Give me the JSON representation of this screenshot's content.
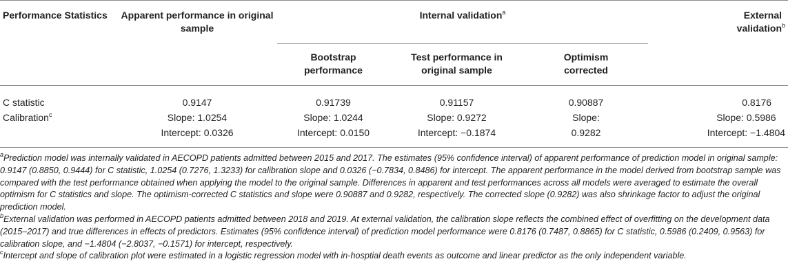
{
  "header": {
    "col0": "Performance Statistics",
    "col1": "Apparent performance in original sample",
    "internal": {
      "label": "Internal validation",
      "sup": "a"
    },
    "external": {
      "label": "External validation",
      "sup": "b"
    },
    "sub": [
      "Bootstrap performance",
      "Test performance in original sample",
      "Optimism corrected"
    ]
  },
  "rows": [
    {
      "label": "C statistic",
      "cells": [
        "0.9147",
        "0.91739",
        "0.91157",
        "0.90887",
        "0.8176"
      ]
    },
    {
      "label": "Calibration",
      "sup": "c",
      "cells": [
        [
          "Slope: 1.0254",
          "Intercept: 0.0326"
        ],
        [
          "Slope: 1.0244",
          "Intercept: 0.0150"
        ],
        [
          "Slope: 0.9272",
          "Intercept: −0.1874"
        ],
        [
          "Slope:",
          "0.9282"
        ],
        [
          "Slope: 0.5986",
          "Intercept: −1.4804"
        ]
      ]
    }
  ],
  "footnotes": [
    {
      "mark": "a",
      "text": "Prediction model was internally validated in AECOPD patients admitted between 2015 and 2017. The estimates (95% confidence interval) of apparent performance of prediction model in original sample: 0.9147 (0.8850, 0.9444) for C statistic, 1.0254 (0.7276, 1.3233) for calibration slope and 0.0326 (−0.7834, 0.8486) for intercept. The apparent performance in the model derived from bootstrap sample was compared with the test performance obtained when applying the model to the original sample. Differences in apparent and test performances across all models were averaged to estimate the overall optimism for C statistics and slope. The optimism-corrected C statistics and slope were 0.90887 and 0.9282, respectively. The corrected slope (0.9282) was also shrinkage factor to adjust the original prediction model."
    },
    {
      "mark": "b",
      "text": "External validation was performed in AECOPD patients admitted between 2018 and 2019. At external validation, the calibration slope reflects the combined effect of overfitting on the development data (2015–2017) and true differences in effects of predictors. Estimates (95% confidence interval) of prediction model performance were 0.8176 (0.7487, 0.8865) for C statistic, 0.5986 (0.2409, 0.9563) for calibration slope, and −1.4804 (−2.8037, −0.1571) for intercept, respectively."
    },
    {
      "mark": "c",
      "text": "Intercept and slope of calibration plot were estimated in a logistic regression model with in-hosptial death events as outcome and linear predictor as the only independent variable."
    }
  ]
}
